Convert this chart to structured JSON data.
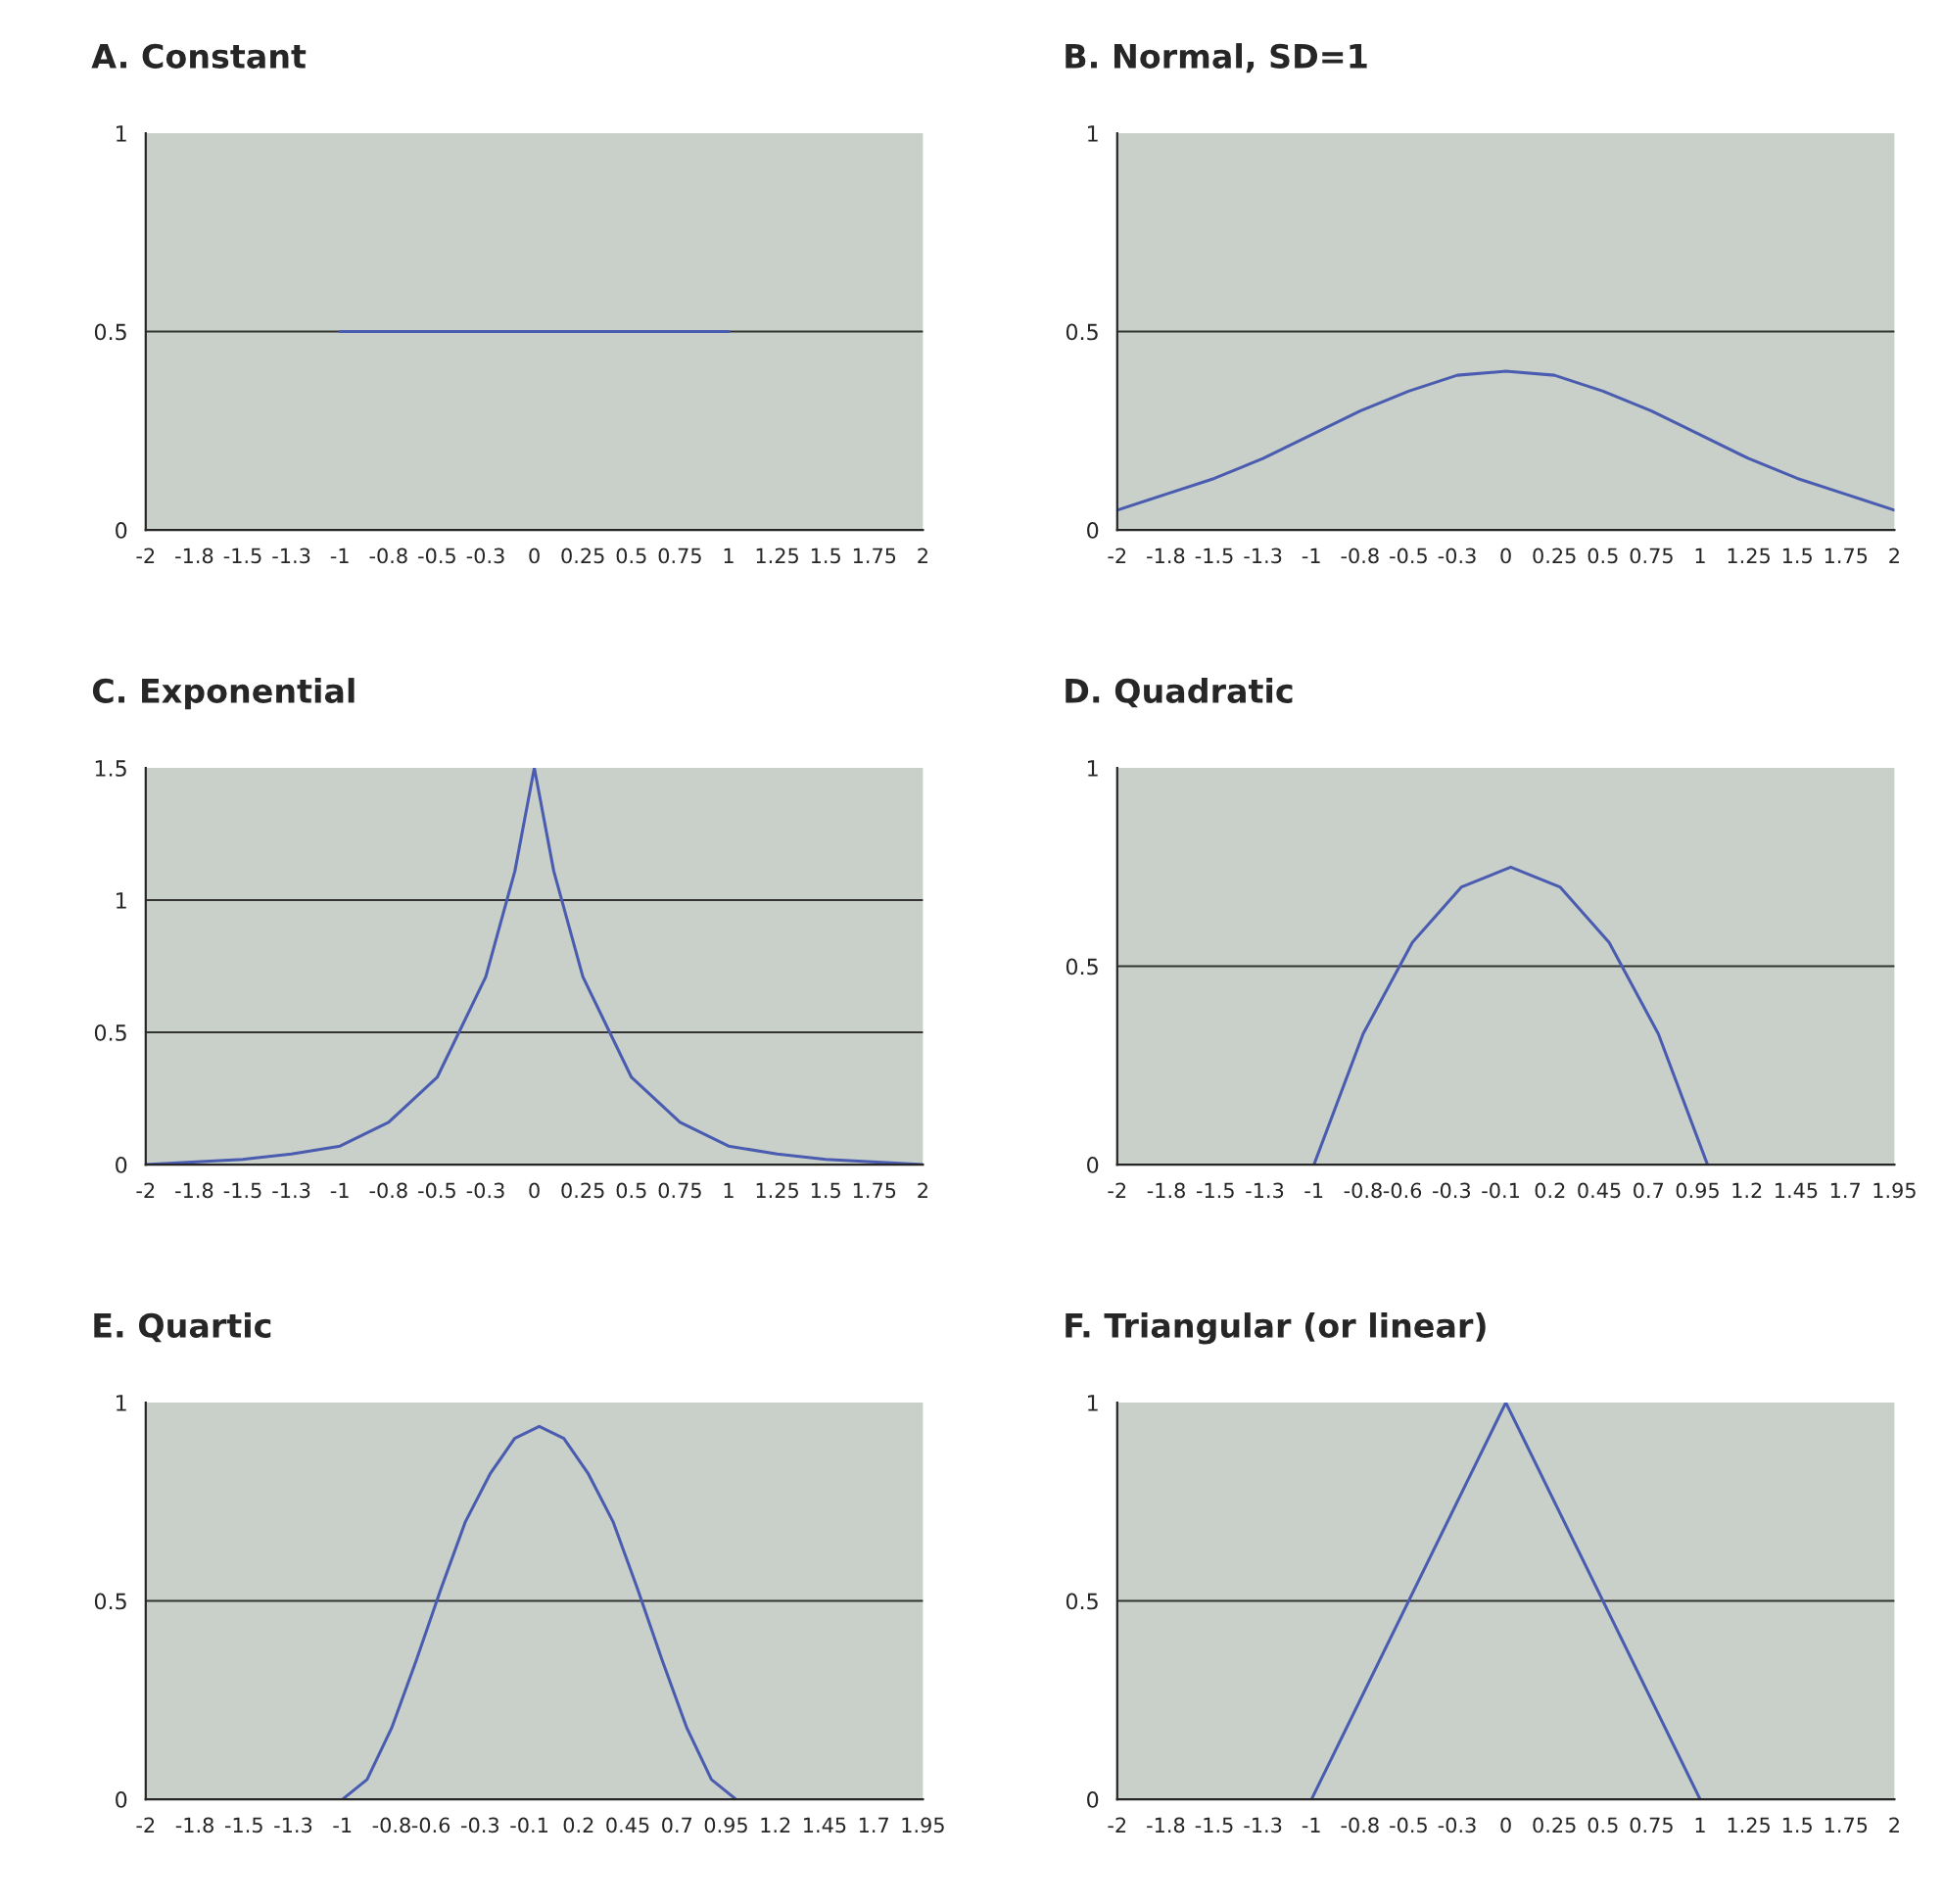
{
  "chart_data": [
    {
      "type": "line",
      "title": "A. Constant",
      "x": [
        -1,
        -0.5,
        0,
        0.5,
        1
      ],
      "values": [
        0.5,
        0.5,
        0.5,
        0.5,
        0.5
      ],
      "color": "#4a5cb0",
      "xlim": [
        -2,
        2
      ],
      "ylim": [
        0,
        1
      ],
      "yticks": [
        0,
        0.5,
        1
      ],
      "grid": "y",
      "marker": "none",
      "line_style": "solid",
      "xticks": [
        -2,
        {
          "value": -1.75,
          "label": "-1.8"
        },
        -1.5,
        {
          "value": -1.25,
          "label": "-1.3"
        },
        -1,
        {
          "value": -0.75,
          "label": "-0.8"
        },
        -0.5,
        {
          "value": -0.25,
          "label": "-0.3"
        },
        0,
        0.25,
        0.5,
        0.75,
        1,
        1.25,
        1.5,
        1.75,
        2
      ]
    },
    {
      "type": "line",
      "title": "B. Normal, SD=1",
      "x": [
        -2,
        -1.75,
        -1.5,
        -1.25,
        -1,
        -0.75,
        -0.5,
        -0.25,
        0,
        0.25,
        0.5,
        0.75,
        1,
        1.25,
        1.5,
        1.75,
        2
      ],
      "values": [
        0.05,
        0.09,
        0.13,
        0.18,
        0.24,
        0.3,
        0.35,
        0.39,
        0.4,
        0.39,
        0.35,
        0.3,
        0.24,
        0.18,
        0.13,
        0.09,
        0.05
      ],
      "color": "#4a5cb0",
      "xlim": [
        -2,
        2
      ],
      "ylim": [
        0,
        1
      ],
      "yticks": [
        0,
        0.5,
        1
      ],
      "grid": "y",
      "marker": "none",
      "line_style": "solid",
      "xticks": [
        -2,
        {
          "value": -1.75,
          "label": "-1.8"
        },
        -1.5,
        {
          "value": -1.25,
          "label": "-1.3"
        },
        -1,
        {
          "value": -0.75,
          "label": "-0.8"
        },
        -0.5,
        {
          "value": -0.25,
          "label": "-0.3"
        },
        0,
        0.25,
        0.5,
        0.75,
        1,
        1.25,
        1.5,
        1.75,
        2
      ]
    },
    {
      "type": "line",
      "title": "C. Exponential",
      "x": [
        -2,
        -1.5,
        -1.25,
        -1,
        -0.75,
        -0.5,
        -0.25,
        -0.1,
        0,
        0.1,
        0.25,
        0.5,
        0.75,
        1,
        1.25,
        1.5,
        2
      ],
      "values": [
        0,
        0.02,
        0.04,
        0.07,
        0.16,
        0.33,
        0.71,
        1.11,
        1.5,
        1.11,
        0.71,
        0.33,
        0.16,
        0.07,
        0.04,
        0.02,
        0
      ],
      "color": "#4a5cb0",
      "xlim": [
        -2,
        2
      ],
      "ylim": [
        0,
        1.5
      ],
      "yticks": [
        0,
        0.5,
        1,
        1.5
      ],
      "grid": "y",
      "marker": "none",
      "line_style": "solid",
      "xticks": [
        -2,
        {
          "value": -1.75,
          "label": "-1.8"
        },
        -1.5,
        {
          "value": -1.25,
          "label": "-1.3"
        },
        -1,
        {
          "value": -0.75,
          "label": "-0.8"
        },
        -0.5,
        {
          "value": -0.25,
          "label": "-0.3"
        },
        0,
        0.25,
        0.5,
        0.75,
        1,
        1.25,
        1.5,
        1.75,
        2
      ]
    },
    {
      "type": "line",
      "title": "D. Quadratic",
      "x": [
        -1,
        -0.75,
        -0.5,
        -0.25,
        0,
        0.25,
        0.5,
        0.75,
        1
      ],
      "values": [
        0,
        0.33,
        0.56,
        0.7,
        0.75,
        0.7,
        0.56,
        0.33,
        0
      ],
      "color": "#4a5cb0",
      "xlim": [
        -2,
        1.95
      ],
      "ylim": [
        0,
        1
      ],
      "yticks": [
        0,
        0.5,
        1
      ],
      "grid": "y",
      "marker": "none",
      "line_style": "solid",
      "xticks": [
        -2,
        {
          "value": -1.75,
          "label": "-1.8"
        },
        -1.5,
        {
          "value": -1.25,
          "label": "-1.3"
        },
        -1,
        {
          "value": -0.75,
          "label": "-0.8"
        },
        {
          "value": -0.55,
          "label": "-0.6"
        },
        -0.3,
        {
          "value": -0.05,
          "label": "-0.1"
        },
        0.2,
        0.45,
        0.7,
        0.95,
        1.2,
        1.45,
        1.7,
        1.95
      ]
    },
    {
      "type": "line",
      "title": "E. Quartic",
      "x": [
        -1,
        -0.875,
        -0.75,
        -0.625,
        -0.5,
        -0.375,
        -0.25,
        -0.125,
        0,
        0.125,
        0.25,
        0.375,
        0.5,
        0.625,
        0.75,
        0.875,
        1
      ],
      "values": [
        0,
        0.05,
        0.18,
        0.35,
        0.53,
        0.7,
        0.82,
        0.91,
        0.94,
        0.91,
        0.82,
        0.7,
        0.53,
        0.35,
        0.18,
        0.05,
        0
      ],
      "color": "#4a5cb0",
      "xlim": [
        -2,
        1.95
      ],
      "ylim": [
        0,
        1
      ],
      "yticks": [
        0,
        0.5,
        1
      ],
      "grid": "y",
      "marker": "none",
      "line_style": "solid",
      "xticks": [
        -2,
        {
          "value": -1.75,
          "label": "-1.8"
        },
        -1.5,
        {
          "value": -1.25,
          "label": "-1.3"
        },
        -1,
        {
          "value": -0.75,
          "label": "-0.8"
        },
        {
          "value": -0.55,
          "label": "-0.6"
        },
        -0.3,
        {
          "value": -0.05,
          "label": "-0.1"
        },
        0.2,
        0.45,
        0.7,
        0.95,
        1.2,
        1.45,
        1.7,
        1.95
      ]
    },
    {
      "type": "line",
      "title": "F. Triangular (or linear)",
      "x": [
        -1,
        0,
        1
      ],
      "values": [
        0,
        1,
        0
      ],
      "color": "#4a5cb0",
      "xlim": [
        -2,
        2
      ],
      "ylim": [
        0,
        1
      ],
      "yticks": [
        0,
        0.5,
        1
      ],
      "grid": "y",
      "marker": "none",
      "line_style": "solid",
      "xticks": [
        -2,
        {
          "value": -1.75,
          "label": "-1.8"
        },
        -1.5,
        {
          "value": -1.25,
          "label": "-1.3"
        },
        -1,
        {
          "value": -0.75,
          "label": "-0.8"
        },
        -0.5,
        {
          "value": -0.25,
          "label": "-0.3"
        },
        0,
        0.25,
        0.5,
        0.75,
        1,
        1.25,
        1.5,
        1.75,
        2
      ]
    }
  ]
}
